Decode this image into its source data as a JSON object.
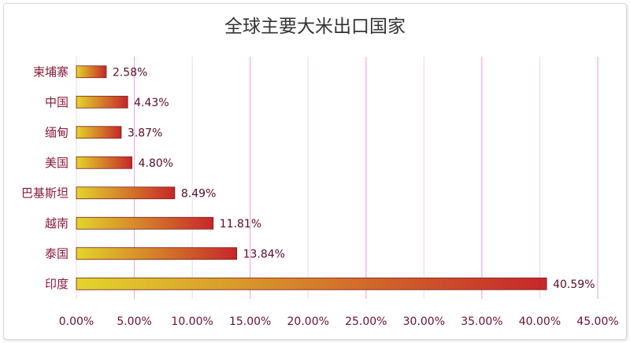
{
  "chart_data": {
    "type": "bar",
    "orientation": "horizontal",
    "title": "全球主要大米出口国家",
    "categories": [
      "柬埔寨",
      "中国",
      "缅甸",
      "美国",
      "巴基斯坦",
      "越南",
      "泰国",
      "印度"
    ],
    "values": [
      2.58,
      4.43,
      3.87,
      4.8,
      8.49,
      11.81,
      13.84,
      40.59
    ],
    "value_labels": [
      "2.58%",
      "4.43%",
      "3.87%",
      "4.80%",
      "8.49%",
      "11.81%",
      "13.84%",
      "40.59%"
    ],
    "xlim": [
      0,
      45
    ],
    "xticks": [
      0,
      5,
      10,
      15,
      20,
      25,
      30,
      35,
      40,
      45
    ],
    "xtick_labels": [
      "0.00%",
      "5.00%",
      "10.00%",
      "15.00%",
      "20.00%",
      "25.00%",
      "30.00%",
      "35.00%",
      "40.00%",
      "45.00%"
    ],
    "xlabel": "",
    "ylabel": "",
    "grid": "vertical",
    "legend": "none",
    "colors": {
      "bar_start": "#e2d52a",
      "bar_end": "#c6262a",
      "bar_border": "#7a1a1a",
      "grid": "#ead3ea",
      "grid_accent": "#e070c8"
    }
  }
}
